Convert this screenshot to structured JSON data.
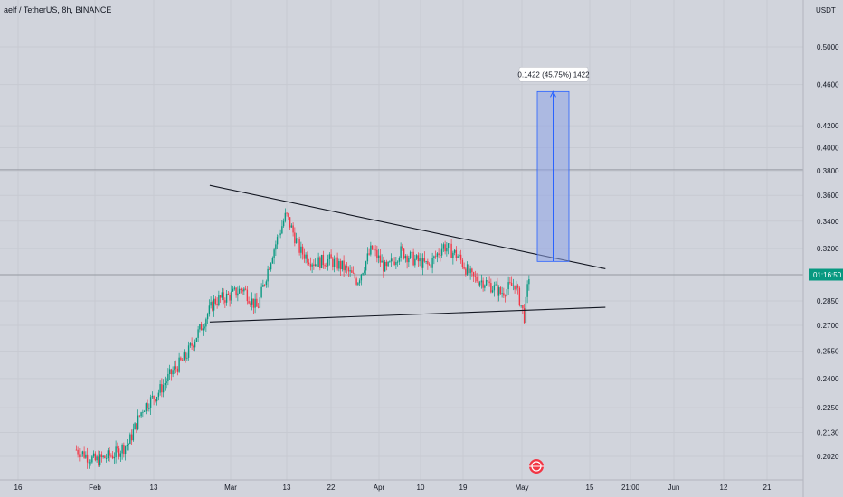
{
  "chart_data": {
    "type": "candlestick",
    "title": "aelf / TetherUS, 8h, BINANCE",
    "y_unit": "USDT",
    "y_scale": "log",
    "ylim": [
      0.197,
      0.55
    ],
    "y_ticks": [
      "0.5000",
      "0.4600",
      "0.4200",
      "0.4000",
      "0.3800",
      "0.3600",
      "0.3400",
      "0.3200",
      "0.2850",
      "0.2700",
      "0.2550",
      "0.2400",
      "0.2250",
      "0.2130",
      "0.2020"
    ],
    "x_ticks": [
      "16",
      "Feb",
      "13",
      "Mar",
      "13",
      "22",
      "Apr",
      "10",
      "19",
      "May",
      "15",
      "21:00",
      "Jun",
      "12",
      "21"
    ],
    "current_price_tag": "01:16:50",
    "current_price": 0.302,
    "horizontal_line_price": 0.381,
    "price_series": [
      {
        "date": "Jan 28",
        "price": 0.205
      },
      {
        "date": "Feb 01",
        "price": 0.2
      },
      {
        "date": "Feb 05",
        "price": 0.203
      },
      {
        "date": "Feb 08",
        "price": 0.208
      },
      {
        "date": "Feb 11",
        "price": 0.225
      },
      {
        "date": "Feb 14",
        "price": 0.232
      },
      {
        "date": "Feb 17",
        "price": 0.243
      },
      {
        "date": "Feb 20",
        "price": 0.252
      },
      {
        "date": "Feb 23",
        "price": 0.268
      },
      {
        "date": "Feb 26",
        "price": 0.285
      },
      {
        "date": "Mar 01",
        "price": 0.288
      },
      {
        "date": "Mar 04",
        "price": 0.293
      },
      {
        "date": "Mar 07",
        "price": 0.28
      },
      {
        "date": "Mar 10",
        "price": 0.315
      },
      {
        "date": "Mar 13",
        "price": 0.345
      },
      {
        "date": "Mar 16",
        "price": 0.318
      },
      {
        "date": "Mar 19",
        "price": 0.31
      },
      {
        "date": "Mar 22",
        "price": 0.312
      },
      {
        "date": "Mar 25",
        "price": 0.307
      },
      {
        "date": "Mar 28",
        "price": 0.298
      },
      {
        "date": "Mar 31",
        "price": 0.32
      },
      {
        "date": "Apr 03",
        "price": 0.305
      },
      {
        "date": "Apr 06",
        "price": 0.318
      },
      {
        "date": "Apr 09",
        "price": 0.312
      },
      {
        "date": "Apr 12",
        "price": 0.308
      },
      {
        "date": "Apr 15",
        "price": 0.322
      },
      {
        "date": "Apr 18",
        "price": 0.315
      },
      {
        "date": "Apr 21",
        "price": 0.3
      },
      {
        "date": "Apr 24",
        "price": 0.297
      },
      {
        "date": "Apr 27",
        "price": 0.29
      },
      {
        "date": "Apr 30",
        "price": 0.296
      },
      {
        "date": "May 02",
        "price": 0.275
      },
      {
        "date": "May 03",
        "price": 0.302
      }
    ],
    "trendlines": [
      {
        "name": "upper",
        "from": {
          "date": "Feb 25",
          "price": 0.368
        },
        "to": {
          "date": "May 19",
          "price": 0.306
        }
      },
      {
        "name": "lower",
        "from": {
          "date": "Feb 25",
          "price": 0.272
        },
        "to": {
          "date": "May 19",
          "price": 0.281
        }
      }
    ],
    "measure": {
      "label": "0.1422 (45.75%) 1422",
      "from_price": 0.311,
      "to_price": 0.453
    }
  }
}
